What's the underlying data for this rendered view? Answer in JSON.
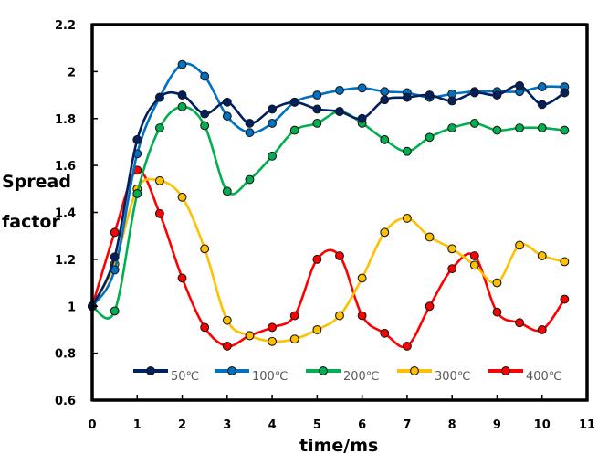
{
  "chart_data": {
    "type": "line",
    "title": "",
    "xlabel": "time/ms",
    "ylabel_lines": [
      "Spread",
      "factor"
    ],
    "ylabel": "Spread factor",
    "xlim": [
      0,
      11
    ],
    "ylim": [
      0.6,
      2.2
    ],
    "xticks": [
      0,
      1,
      2,
      3,
      4,
      5,
      6,
      7,
      8,
      9,
      10,
      11
    ],
    "xtick_labels": [
      "0",
      "1",
      "2",
      "3",
      "4",
      "5",
      "6",
      "7",
      "8",
      "9",
      "10",
      "11"
    ],
    "yticks": [
      0.6,
      0.8,
      1.0,
      1.2,
      1.4,
      1.6,
      1.8,
      2.0,
      2.2
    ],
    "ytick_labels": [
      "0.6",
      "0.8",
      "1",
      "1.2",
      "1.4",
      "1.6",
      "1.8",
      "2",
      "2.2"
    ],
    "grid": false,
    "legend_position": "bottom-inside",
    "smooth": true,
    "x": [
      0,
      0.5,
      1,
      1.5,
      2,
      2.5,
      3,
      3.5,
      4,
      4.5,
      5,
      5.5,
      6,
      6.5,
      7,
      7.5,
      8,
      8.5,
      9,
      9.5,
      10,
      10.5
    ],
    "series": [
      {
        "name": "50℃",
        "color": "#002060",
        "values": [
          1.0,
          1.21,
          1.71,
          1.89,
          1.9,
          1.82,
          1.87,
          1.78,
          1.84,
          1.87,
          1.84,
          1.83,
          1.8,
          1.88,
          1.89,
          1.9,
          1.875,
          1.91,
          1.9,
          1.94,
          1.86,
          1.91
        ]
      },
      {
        "name": "100℃",
        "color": "#0070C0",
        "values": [
          1.0,
          1.155,
          1.65,
          1.89,
          2.03,
          1.98,
          1.81,
          1.74,
          1.78,
          1.87,
          1.9,
          1.92,
          1.93,
          1.915,
          1.91,
          1.89,
          1.905,
          1.915,
          1.915,
          1.915,
          1.935,
          1.935
        ]
      },
      {
        "name": "200℃",
        "color": "#00B050",
        "values": [
          1.0,
          0.98,
          1.48,
          1.76,
          1.85,
          1.77,
          1.49,
          1.54,
          1.64,
          1.75,
          1.78,
          1.83,
          1.78,
          1.71,
          1.66,
          1.72,
          1.76,
          1.78,
          1.75,
          1.76,
          1.76,
          1.75
        ]
      },
      {
        "name": "300℃",
        "color": "#FFC000",
        "values": [
          1.0,
          1.18,
          1.5,
          1.535,
          1.465,
          1.245,
          0.94,
          0.875,
          0.85,
          0.86,
          0.9,
          0.96,
          1.12,
          1.315,
          1.375,
          1.295,
          1.245,
          1.175,
          1.1,
          1.26,
          1.215,
          1.19
        ]
      },
      {
        "name": "400℃",
        "color": "#FF0000",
        "values": [
          1.0,
          1.315,
          1.58,
          1.395,
          1.12,
          0.91,
          0.83,
          0.875,
          0.91,
          0.96,
          1.2,
          1.215,
          0.96,
          0.885,
          0.83,
          1.0,
          1.16,
          1.215,
          0.975,
          0.93,
          0.9,
          1.03
        ]
      }
    ]
  }
}
